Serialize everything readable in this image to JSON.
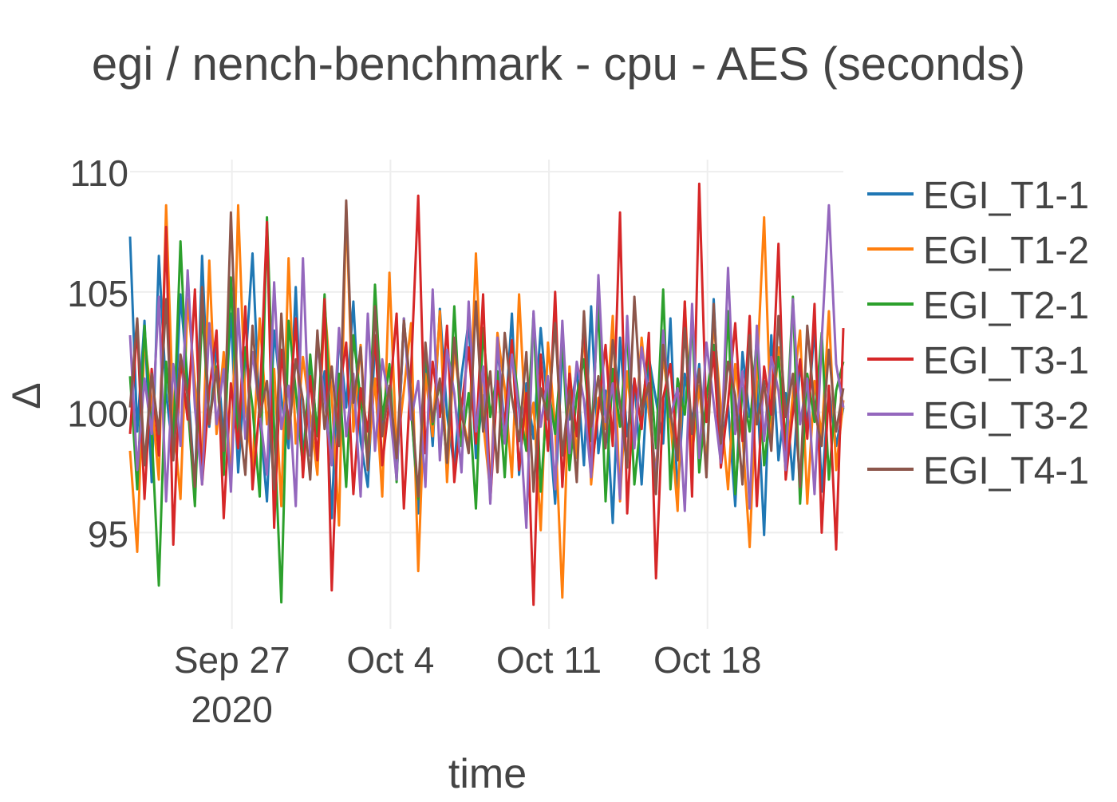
{
  "chart_data": {
    "type": "line",
    "title": "egi / nench-benchmark - cpu - AES (seconds)",
    "xlabel": "time",
    "ylabel": "Δ",
    "x_range": [
      "2020-09-22T12:00",
      "2020-10-24T00:00"
    ],
    "ylim": [
      91,
      110.5
    ],
    "y_ticks": [
      95,
      100,
      105,
      110
    ],
    "x_ticks": [
      {
        "date": "2020-09-27",
        "label": "Sep 27",
        "sublabel": "2020"
      },
      {
        "date": "2020-10-04",
        "label": "Oct 4",
        "sublabel": ""
      },
      {
        "date": "2020-10-11",
        "label": "Oct 11",
        "sublabel": ""
      },
      {
        "date": "2020-10-18",
        "label": "Oct 18",
        "sublabel": ""
      }
    ],
    "grid": true,
    "legend_position": "right",
    "series": [
      {
        "name": "EGI_T1-1",
        "color": "#1f77b4",
        "values": [
          107.3,
          99.2,
          103.8,
          97.1,
          106.5,
          100.8,
          98.2,
          104.9,
          101.3,
          96.8,
          106.5,
          99.4,
          102.7,
          98.9,
          104.1,
          97.5,
          101.9,
          106.6,
          99.8,
          96.3,
          103.4,
          100.6,
          98.5,
          105.2,
          97.9,
          102.2,
          99.1,
          101.7,
          95.6,
          103.3,
          100.2,
          104.6,
          98.8,
          96.9,
          102.9,
          99.5,
          101.1,
          97.3,
          103.7,
          100.4,
          95.8,
          102.4,
          98.6,
          104.3,
          99.9,
          97.7,
          101.5,
          103.8,
          98.1,
          100.7,
          96.6,
          102.8,
          99.3,
          104.1,
          97.4,
          101.2,
          98.9,
          103.5,
          100.1,
          96.2,
          102.6,
          99.7,
          101.8,
          97.8,
          104.4,
          98.3,
          100.9,
          95.4,
          103.1,
          99.0,
          101.4,
          97.0,
          102.3,
          100.5,
          98.7,
          103.9,
          96.4,
          101.6,
          99.6,
          102.0,
          97.6,
          104.7,
          98.4,
          100.3,
          96.1,
          102.5,
          99.8,
          101.3,
          94.9,
          103.2,
          98.0,
          100.8,
          97.2,
          102.1,
          99.4,
          103.6,
          96.7,
          101.0,
          98.6,
          100.2
        ]
      },
      {
        "name": "EGI_T1-2",
        "color": "#ff7f0e",
        "values": [
          98.4,
          94.2,
          103.1,
          100.5,
          97.2,
          108.6,
          99.8,
          96.4,
          104.7,
          101.2,
          97.8,
          106.3,
          99.1,
          102.5,
          96.9,
          108.6,
          100.3,
          97.6,
          103.9,
          99.5,
          101.8,
          96.1,
          106.4,
          98.7,
          102.3,
          99.9,
          97.4,
          104.5,
          100.7,
          95.3,
          108.6,
          99.2,
          102.8,
          97.9,
          101.4,
          96.5,
          105.8,
          98.3,
          100.9,
          103.7,
          93.4,
          101.6,
          99.0,
          104.2,
          97.1,
          102.6,
          100.1,
          98.5,
          106.6,
          99.6,
          96.7,
          103.3,
          101.0,
          97.3,
          104.9,
          98.8,
          100.4,
          95.1,
          102.9,
          99.4,
          92.3,
          101.9,
          98.1,
          103.5,
          97.0,
          100.6,
          99.3,
          104.0,
          96.3,
          101.7,
          98.6,
          103.1,
          100.0,
          97.5,
          102.4,
          99.7,
          95.9,
          104.6,
          98.2,
          101.1,
          97.8,
          103.8,
          100.2,
          96.8,
          102.0,
          99.1,
          94.4,
          101.5,
          108.1,
          98.9,
          102.7,
          97.4,
          100.8,
          103.4,
          96.2,
          101.3,
          99.0,
          104.2,
          97.6,
          100.5
        ]
      },
      {
        "name": "EGI_T2-1",
        "color": "#2ca02c",
        "values": [
          101.5,
          96.8,
          103.6,
          99.2,
          92.8,
          102.1,
          98.7,
          107.1,
          100.4,
          96.1,
          104.3,
          99.6,
          101.9,
          97.4,
          105.6,
          98.9,
          102.7,
          100.2,
          96.5,
          108.1,
          99.3,
          92.1,
          103.8,
          100.9,
          97.7,
          102.4,
          99.0,
          104.9,
          98.2,
          101.6,
          96.9,
          103.2,
          100.5,
          98.0,
          105.3,
          99.7,
          102.0,
          97.1,
          103.9,
          100.1,
          96.4,
          102.6,
          99.5,
          101.3,
          97.9,
          104.4,
          98.6,
          100.8,
          96.0,
          103.5,
          99.8,
          101.7,
          97.3,
          102.9,
          100.3,
          98.4,
          104.1,
          96.7,
          101.1,
          99.1,
          103.0,
          97.6,
          100.7,
          102.2,
          98.8,
          104.5,
          96.3,
          101.8,
          99.4,
          103.4,
          97.0,
          100.0,
          102.5,
          98.5,
          105.1,
          96.8,
          101.4,
          99.9,
          103.7,
          97.5,
          100.6,
          102.8,
          98.1,
          104.2,
          96.6,
          101.0,
          99.2,
          103.1,
          97.8,
          100.4,
          102.3,
          98.7,
          104.8,
          96.2,
          101.6,
          99.6,
          103.3,
          97.2,
          100.9,
          102.1
        ]
      },
      {
        "name": "EGI_T3-1",
        "color": "#d62728",
        "values": [
          99.1,
          103.6,
          96.4,
          101.8,
          98.2,
          107.7,
          94.5,
          102.3,
          99.7,
          105.1,
          97.0,
          100.9,
          103.4,
          95.6,
          101.2,
          98.5,
          104.4,
          96.8,
          100.3,
          107.9,
          95.2,
          102.6,
          99.4,
          103.9,
          97.3,
          101.5,
          98.0,
          104.7,
          92.6,
          100.7,
          102.9,
          96.6,
          101.0,
          99.2,
          103.2,
          97.8,
          100.5,
          104.1,
          96.0,
          101.7,
          109.0,
          98.3,
          102.1,
          99.8,
          103.6,
          97.1,
          100.2,
          102.7,
          98.7,
          104.9,
          96.3,
          101.3,
          99.5,
          103.0,
          97.6,
          100.8,
          92.0,
          102.4,
          98.4,
          105.0,
          96.9,
          101.6,
          99.0,
          103.8,
          97.4,
          100.1,
          102.8,
          98.6,
          108.3,
          95.8,
          101.4,
          99.3,
          103.3,
          93.1,
          100.6,
          102.0,
          98.1,
          104.6,
          96.5,
          109.5,
          99.6,
          102.5,
          97.7,
          100.4,
          103.7,
          98.8,
          104.0,
          96.1,
          101.9,
          99.9,
          107.0,
          97.2,
          100.0,
          102.2,
          98.9,
          104.5,
          95.0,
          101.1,
          94.3,
          103.5
        ]
      },
      {
        "name": "EGI_T3-2",
        "color": "#9467bd",
        "values": [
          103.2,
          97.6,
          101.4,
          99.1,
          104.8,
          96.3,
          102.0,
          98.6,
          105.9,
          100.2,
          97.0,
          103.7,
          99.5,
          101.8,
          96.7,
          104.3,
          98.9,
          102.5,
          100.0,
          97.4,
          105.4,
          99.3,
          101.1,
          96.1,
          106.4,
          98.2,
          102.8,
          100.6,
          97.8,
          103.5,
          99.0,
          101.6,
          96.5,
          104.1,
          98.4,
          102.2,
          100.3,
          97.2,
          103.9,
          99.7,
          101.3,
          96.9,
          105.1,
          98.0,
          102.6,
          100.8,
          97.5,
          104.6,
          99.2,
          101.9,
          96.2,
          103.1,
          98.7,
          102.4,
          100.1,
          95.2,
          104.2,
          99.4,
          101.5,
          96.8,
          103.8,
          98.3,
          102.1,
          100.5,
          97.3,
          105.7,
          99.6,
          101.2,
          96.4,
          104.0,
          98.5,
          102.7,
          100.7,
          97.1,
          103.4,
          99.8,
          101.0,
          95.9,
          104.5,
          98.1,
          102.9,
          100.4,
          97.9,
          106.0,
          99.1,
          101.7,
          96.0,
          103.6,
          98.8,
          102.3,
          100.9,
          97.6,
          104.7,
          99.5,
          101.4,
          96.6,
          103.0,
          108.6,
          102.0,
          100.2
        ]
      },
      {
        "name": "EGI_T4-1",
        "color": "#8c564b",
        "values": [
          100.2,
          103.9,
          97.8,
          101.6,
          99.1,
          104.7,
          98.0,
          102.4,
          100.7,
          96.9,
          105.2,
          99.5,
          101.8,
          98.4,
          108.3,
          100.1,
          97.4,
          103.6,
          99.8,
          101.3,
          96.8,
          104.1,
          98.9,
          102.2,
          100.5,
          97.2,
          103.4,
          99.3,
          101.9,
          98.6,
          108.8,
          100.4,
          102.7,
          97.6,
          104.4,
          99.0,
          101.1,
          98.1,
          103.8,
          100.8,
          96.5,
          102.9,
          99.6,
          101.4,
          97.9,
          103.1,
          100.0,
          98.3,
          104.6,
          99.2,
          101.7,
          97.5,
          103.3,
          100.6,
          98.8,
          102.5,
          96.7,
          101.0,
          99.7,
          103.7,
          98.2,
          100.9,
          97.1,
          104.2,
          99.4,
          101.5,
          98.5,
          103.0,
          100.3,
          97.7,
          104.8,
          99.9,
          101.2,
          96.6,
          102.8,
          100.0,
          98.0,
          103.5,
          99.1,
          101.8,
          97.3,
          104.5,
          98.7,
          102.1,
          100.7,
          97.0,
          103.2,
          99.5,
          101.3,
          98.4,
          104.0,
          99.8,
          101.6,
          96.9,
          103.6,
          100.1,
          98.6,
          102.6,
          99.2,
          101.0
        ]
      }
    ]
  }
}
